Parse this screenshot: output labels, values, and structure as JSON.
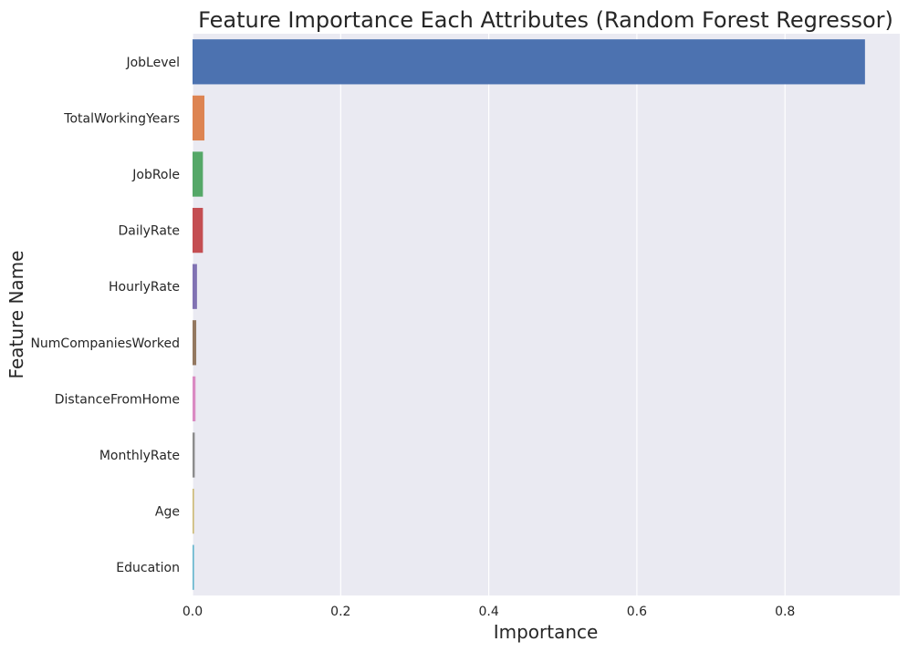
{
  "chart_data": {
    "type": "bar",
    "orientation": "horizontal",
    "title": "Feature Importance Each Attributes (Random Forest Regressor)",
    "xlabel": "Importance",
    "ylabel": "Feature Name",
    "xlim": [
      0,
      0.955
    ],
    "x_ticks": [
      "0.0",
      "0.2",
      "0.4",
      "0.6",
      "0.8"
    ],
    "x_tick_values": [
      0.0,
      0.2,
      0.4,
      0.6,
      0.8
    ],
    "grid": true,
    "categories": [
      "JobLevel",
      "TotalWorkingYears",
      "JobRole",
      "DailyRate",
      "HourlyRate",
      "NumCompaniesWorked",
      "DistanceFromHome",
      "MonthlyRate",
      "Age",
      "Education"
    ],
    "values": [
      0.908,
      0.016,
      0.014,
      0.014,
      0.006,
      0.005,
      0.004,
      0.003,
      0.002,
      0.002
    ],
    "colors": [
      "#4c72b0",
      "#dd8452",
      "#55a868",
      "#c44e52",
      "#8172b3",
      "#937860",
      "#da8bc3",
      "#8c8c8c",
      "#ccb974",
      "#64b5cd"
    ]
  }
}
